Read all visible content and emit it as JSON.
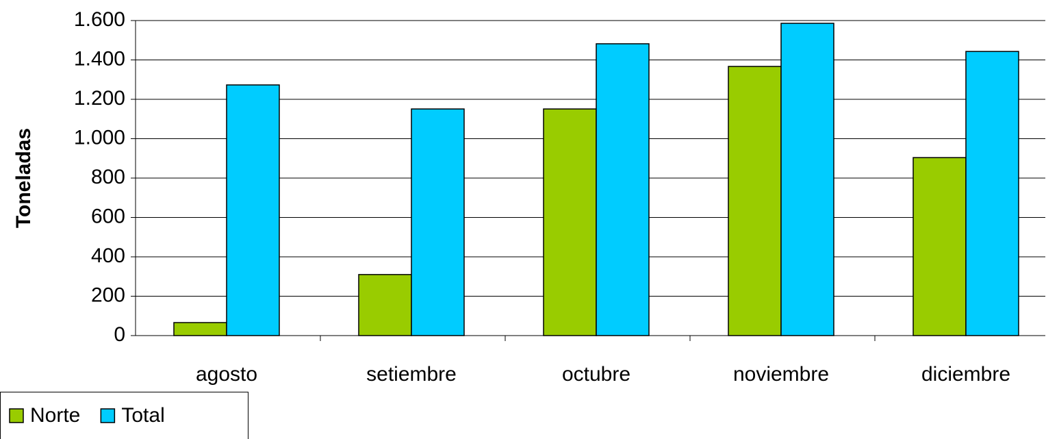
{
  "chart_data": {
    "type": "bar",
    "y_label": "Toneladas",
    "categories": [
      "agosto",
      "setiembre",
      "octubre",
      "noviembre",
      "diciembre"
    ],
    "series": [
      {
        "name": "Norte",
        "color": "#99cc00",
        "values": [
          66,
          310,
          1151,
          1367,
          904
        ]
      },
      {
        "name": "Total",
        "color": "#00ccff",
        "values": [
          1273,
          1151,
          1482,
          1586,
          1443
        ]
      }
    ],
    "ylim": [
      0,
      1600
    ],
    "yticks": [
      0,
      200,
      400,
      600,
      800,
      {
        "value": 1000,
        "label": "1.000"
      },
      {
        "value": 1200,
        "label": "1.200"
      },
      {
        "value": 1400,
        "label": "1.400"
      },
      {
        "value": 1600,
        "label": "1.600"
      }
    ],
    "grid": true,
    "legend": "bottom-left"
  }
}
